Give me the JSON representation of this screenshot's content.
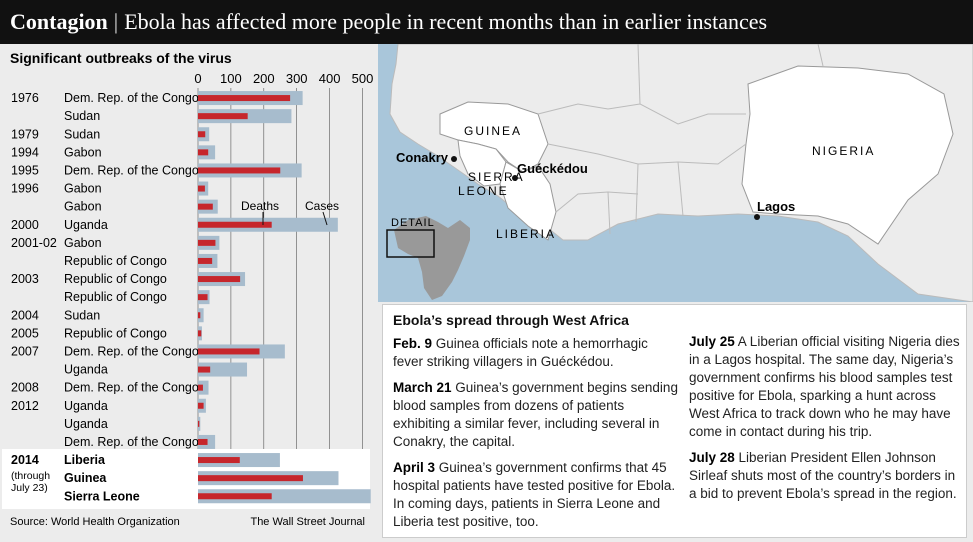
{
  "banner": {
    "head": "Contagion",
    "sep": "|",
    "title": "Ebola has affected more people in recent months than in earlier instances"
  },
  "colors": {
    "deaths": "#c6262c",
    "cases": "#a7bccd",
    "banner": "#111111",
    "sea": "#a9c6da",
    "land": "#ececec"
  },
  "chart_data": {
    "type": "bar",
    "title": "Significant outbreaks of the virus",
    "xlim": [
      0,
      500
    ],
    "ticks": [
      0,
      100,
      200,
      300,
      400,
      500
    ],
    "legend": {
      "deaths": "Deaths",
      "cases": "Cases"
    },
    "rows": [
      {
        "year": "1976",
        "country": "Dem. Rep. of the Congo",
        "deaths": 280,
        "cases": 318
      },
      {
        "year": "",
        "country": "Sudan",
        "deaths": 151,
        "cases": 284
      },
      {
        "year": "1979",
        "country": "Sudan",
        "deaths": 22,
        "cases": 34
      },
      {
        "year": "1994",
        "country": "Gabon",
        "deaths": 31,
        "cases": 52
      },
      {
        "year": "1995",
        "country": "Dem. Rep. of the Congo",
        "deaths": 250,
        "cases": 315
      },
      {
        "year": "1996",
        "country": "Gabon",
        "deaths": 21,
        "cases": 31
      },
      {
        "year": "",
        "country": "Gabon",
        "deaths": 45,
        "cases": 60
      },
      {
        "year": "2000",
        "country": "Uganda",
        "deaths": 224,
        "cases": 425
      },
      {
        "year": "2001-02",
        "country": "Gabon",
        "deaths": 53,
        "cases": 65
      },
      {
        "year": "",
        "country": "Republic of Congo",
        "deaths": 43,
        "cases": 59
      },
      {
        "year": "2003",
        "country": "Republic of Congo",
        "deaths": 128,
        "cases": 143
      },
      {
        "year": "",
        "country": "Republic of Congo",
        "deaths": 29,
        "cases": 35
      },
      {
        "year": "2004",
        "country": "Sudan",
        "deaths": 7,
        "cases": 17
      },
      {
        "year": "2005",
        "country": "Republic of Congo",
        "deaths": 10,
        "cases": 12
      },
      {
        "year": "2007",
        "country": "Dem. Rep. of the Congo",
        "deaths": 187,
        "cases": 264
      },
      {
        "year": "",
        "country": "Uganda",
        "deaths": 37,
        "cases": 149
      },
      {
        "year": "2008",
        "country": "Dem. Rep. of the Congo",
        "deaths": 15,
        "cases": 32
      },
      {
        "year": "2012",
        "country": "Uganda",
        "deaths": 17,
        "cases": 24
      },
      {
        "year": "",
        "country": "Uganda",
        "deaths": 4,
        "cases": 7
      },
      {
        "year": "",
        "country": "Dem. Rep. of the Congo",
        "deaths": 29,
        "cases": 52
      },
      {
        "year": "2014",
        "sub": "(through July 23)",
        "country": "Liberia",
        "deaths": 127,
        "cases": 249,
        "highlight": true
      },
      {
        "year": "",
        "country": "Guinea",
        "deaths": 319,
        "cases": 427,
        "highlight": true
      },
      {
        "year": "",
        "country": "Sierra Leone",
        "deaths": 224,
        "cases": 525,
        "highlight": true
      }
    ],
    "source": "Source: World Health Organization",
    "credit": "The Wall Street Journal"
  },
  "map": {
    "labels": {
      "guinea": "GUINEA",
      "sierra": "SIERRA",
      "leone": "LEONE",
      "liberia": "LIBERIA",
      "nigeria": "NIGERIA",
      "detail": "DETAIL"
    },
    "cities": {
      "conakry": "Conakry",
      "gueckedou": "Guéckédou",
      "lagos": "Lagos"
    }
  },
  "timeline": {
    "title": "Ebola’s spread through West Africa",
    "entries": [
      {
        "date": "Feb. 9",
        "text": "Guinea officials note a hemorrhagic fever striking villagers in Guéckédou."
      },
      {
        "date": "March 21",
        "text": "Guinea’s government begins sending blood samples from dozens of patients exhibiting a similar fever, including several in Conakry, the capital."
      },
      {
        "date": "April 3",
        "text": "Guinea’s government confirms that 45 hospital patients have tested positive for Ebola. In coming days, patients in Sierra Leone and Liberia test positive, too."
      },
      {
        "date": "July 25",
        "text": "A Liberian official visiting Nigeria dies in a Lagos hospital. The same day, Nigeria’s government confirms his blood samples test positive for Ebola, sparking a hunt across West Africa to track down who he may have come in contact during his trip."
      },
      {
        "date": "July 28",
        "text": "Liberian President Ellen Johnson Sirleaf shuts most of the country’s borders in a bid to prevent Ebola’s spread in the region."
      }
    ]
  }
}
